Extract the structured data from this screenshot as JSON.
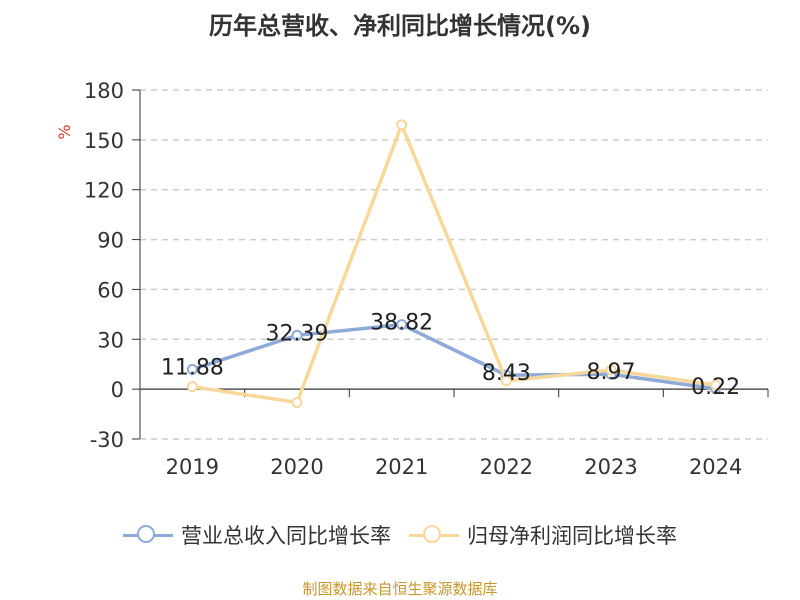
{
  "chart_data": {
    "type": "line",
    "title": "历年总营收、净利同比增长情况(%)",
    "ylabel": "%",
    "categories": [
      "2019",
      "2020",
      "2021",
      "2022",
      "2023",
      "2024"
    ],
    "ylim": [
      -30,
      180
    ],
    "yticks": [
      -30,
      0,
      30,
      60,
      90,
      120,
      150,
      180
    ],
    "grid": true,
    "legend_position": "bottom",
    "series": [
      {
        "name": "营业总收入同比增长率",
        "color": "#8eaad8",
        "values": [
          11.88,
          32.39,
          38.82,
          8.43,
          8.97,
          0.22
        ],
        "labels": [
          "11.88",
          "32.39",
          "38.82",
          "8.43",
          "8.97",
          "0.22"
        ]
      },
      {
        "name": "归母净利润同比增长率",
        "color": "#f8d89a",
        "values": [
          1.5,
          -8.0,
          159.0,
          5.0,
          11.5,
          2.5
        ]
      }
    ]
  },
  "source": "制图数据来自恒生聚源数据库"
}
